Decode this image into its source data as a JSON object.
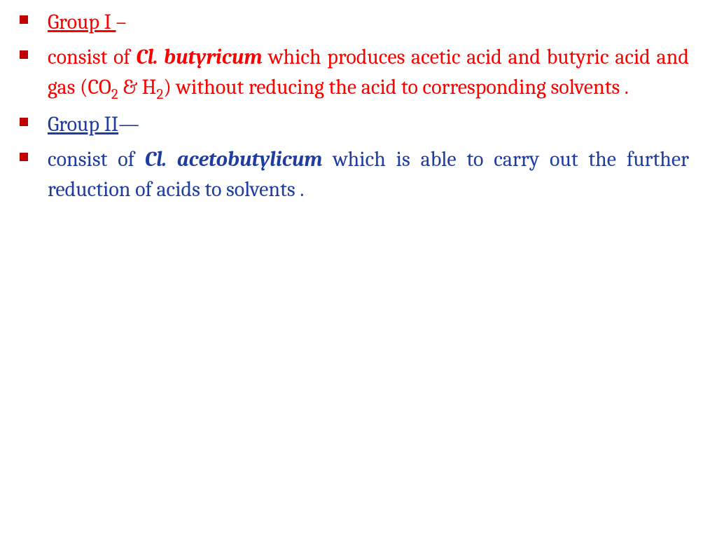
{
  "bullet_color": "#c00000",
  "text_red": "#ff0000",
  "text_blue": "#1f3da0",
  "items": [
    {
      "color": "red",
      "justify": false,
      "parts": [
        {
          "text": "Group I ",
          "underline": true
        },
        {
          "text": "–"
        }
      ]
    },
    {
      "color": "red",
      "justify": true,
      "parts": [
        {
          "text": "consist of "
        },
        {
          "text": "Cl. butyricum",
          "bold_italic": true
        },
        {
          "text": " which produces  acetic acid and butyric acid and gas (CO"
        },
        {
          "text": "2",
          "sub": true
        },
        {
          "text": " & H"
        },
        {
          "text": "2",
          "sub": true
        },
        {
          "text": ") without reducing the acid to corresponding solvents ."
        }
      ]
    },
    {
      "color": "blue",
      "justify": false,
      "parts": [
        {
          "text": "Group II",
          "underline": true
        },
        {
          "text": "—"
        }
      ]
    },
    {
      "color": "blue",
      "justify": true,
      "parts": [
        {
          "text": "consist of "
        },
        {
          "text": "Cl. acetobutylicum",
          "bold_italic": true
        },
        {
          "text": " which is able to carry out the further   reduction of acids to solvents ."
        }
      ]
    }
  ]
}
